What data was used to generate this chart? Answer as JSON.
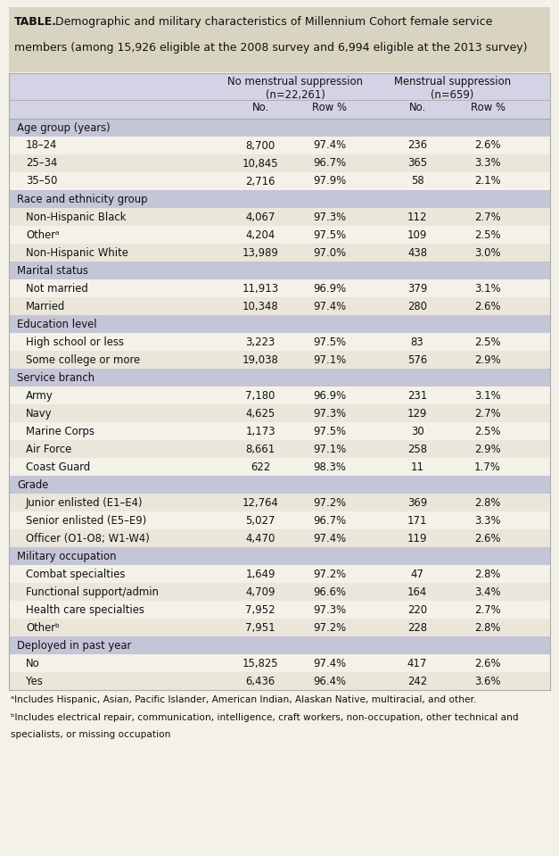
{
  "title_bold": "TABLE.",
  "title_line1_rest": " Demographic and military characteristics of Millennium Cohort female service",
  "title_line2": "members (among 15,926 eligible at the 2008 survey and 6,994 eligible at the 2013 survey)",
  "header1": [
    "No menstrual suppression\n(n=22,261)",
    "Menstrual suppression\n(n=659)"
  ],
  "header2": [
    "No.",
    "Row %",
    "No.",
    "Row %"
  ],
  "rows": [
    {
      "type": "category",
      "label": "Age group (years)",
      "values": [
        "",
        "",
        "",
        ""
      ]
    },
    {
      "type": "data",
      "label": "18–24",
      "values": [
        "8,700",
        "97.4%",
        "236",
        "2.6%"
      ]
    },
    {
      "type": "data",
      "label": "25–34",
      "values": [
        "10,845",
        "96.7%",
        "365",
        "3.3%"
      ]
    },
    {
      "type": "data",
      "label": "35–50",
      "values": [
        "2,716",
        "97.9%",
        "58",
        "2.1%"
      ]
    },
    {
      "type": "category",
      "label": "Race and ethnicity group",
      "values": [
        "",
        "",
        "",
        ""
      ]
    },
    {
      "type": "data",
      "label": "Non-Hispanic Black",
      "values": [
        "4,067",
        "97.3%",
        "112",
        "2.7%"
      ]
    },
    {
      "type": "data",
      "label": "Otherᵃ",
      "values": [
        "4,204",
        "97.5%",
        "109",
        "2.5%"
      ]
    },
    {
      "type": "data",
      "label": "Non-Hispanic White",
      "values": [
        "13,989",
        "97.0%",
        "438",
        "3.0%"
      ]
    },
    {
      "type": "category",
      "label": "Marital status",
      "values": [
        "",
        "",
        "",
        ""
      ]
    },
    {
      "type": "data",
      "label": "Not married",
      "values": [
        "11,913",
        "96.9%",
        "379",
        "3.1%"
      ]
    },
    {
      "type": "data",
      "label": "Married",
      "values": [
        "10,348",
        "97.4%",
        "280",
        "2.6%"
      ]
    },
    {
      "type": "category",
      "label": "Education level",
      "values": [
        "",
        "",
        "",
        ""
      ]
    },
    {
      "type": "data",
      "label": "High school or less",
      "values": [
        "3,223",
        "97.5%",
        "83",
        "2.5%"
      ]
    },
    {
      "type": "data",
      "label": "Some college or more",
      "values": [
        "19,038",
        "97.1%",
        "576",
        "2.9%"
      ]
    },
    {
      "type": "category",
      "label": "Service branch",
      "values": [
        "",
        "",
        "",
        ""
      ]
    },
    {
      "type": "data",
      "label": "Army",
      "values": [
        "7,180",
        "96.9%",
        "231",
        "3.1%"
      ]
    },
    {
      "type": "data",
      "label": "Navy",
      "values": [
        "4,625",
        "97.3%",
        "129",
        "2.7%"
      ]
    },
    {
      "type": "data",
      "label": "Marine Corps",
      "values": [
        "1,173",
        "97.5%",
        "30",
        "2.5%"
      ]
    },
    {
      "type": "data",
      "label": "Air Force",
      "values": [
        "8,661",
        "97.1%",
        "258",
        "2.9%"
      ]
    },
    {
      "type": "data",
      "label": "Coast Guard",
      "values": [
        "622",
        "98.3%",
        "11",
        "1.7%"
      ]
    },
    {
      "type": "category",
      "label": "Grade",
      "values": [
        "",
        "",
        "",
        ""
      ]
    },
    {
      "type": "data",
      "label": "Junior enlisted (E1–E4)",
      "values": [
        "12,764",
        "97.2%",
        "369",
        "2.8%"
      ]
    },
    {
      "type": "data",
      "label": "Senior enlisted (E5–E9)",
      "values": [
        "5,027",
        "96.7%",
        "171",
        "3.3%"
      ]
    },
    {
      "type": "data",
      "label": "Officer (O1-O8; W1-W4)",
      "values": [
        "4,470",
        "97.4%",
        "119",
        "2.6%"
      ]
    },
    {
      "type": "category",
      "label": "Military occupation",
      "values": [
        "",
        "",
        "",
        ""
      ]
    },
    {
      "type": "data",
      "label": "Combat specialties",
      "values": [
        "1,649",
        "97.2%",
        "47",
        "2.8%"
      ]
    },
    {
      "type": "data",
      "label": "Functional support/admin",
      "values": [
        "4,709",
        "96.6%",
        "164",
        "3.4%"
      ]
    },
    {
      "type": "data",
      "label": "Health care specialties",
      "values": [
        "7,952",
        "97.3%",
        "220",
        "2.7%"
      ]
    },
    {
      "type": "data",
      "label": "Otherᵇ",
      "values": [
        "7,951",
        "97.2%",
        "228",
        "2.8%"
      ]
    },
    {
      "type": "category",
      "label": "Deployed in past year",
      "values": [
        "",
        "",
        "",
        ""
      ]
    },
    {
      "type": "data",
      "label": "No",
      "values": [
        "15,825",
        "97.4%",
        "417",
        "2.6%"
      ]
    },
    {
      "type": "data",
      "label": "Yes",
      "values": [
        "6,436",
        "96.4%",
        "242",
        "3.6%"
      ]
    }
  ],
  "footnote_a": "ᵃIncludes Hispanic, Asian, Pacific Islander, American Indian, Alaskan Native, multiracial, and other.",
  "footnote_b1": "ᵇIncludes electrical repair, communication, intelligence, craft workers, non-occupation, other technical and",
  "footnote_b2": "specialists, or missing occupation",
  "bg_title": "#d9d4c2",
  "bg_header": "#d3d3e5",
  "bg_category": "#c5c5d8",
  "bg_data_odd": "#f4f1e8",
  "bg_data_even": "#eae6da",
  "text_color": "#111111",
  "border_color": "#aaaaaa",
  "fig_bg": "#f4f1e8"
}
